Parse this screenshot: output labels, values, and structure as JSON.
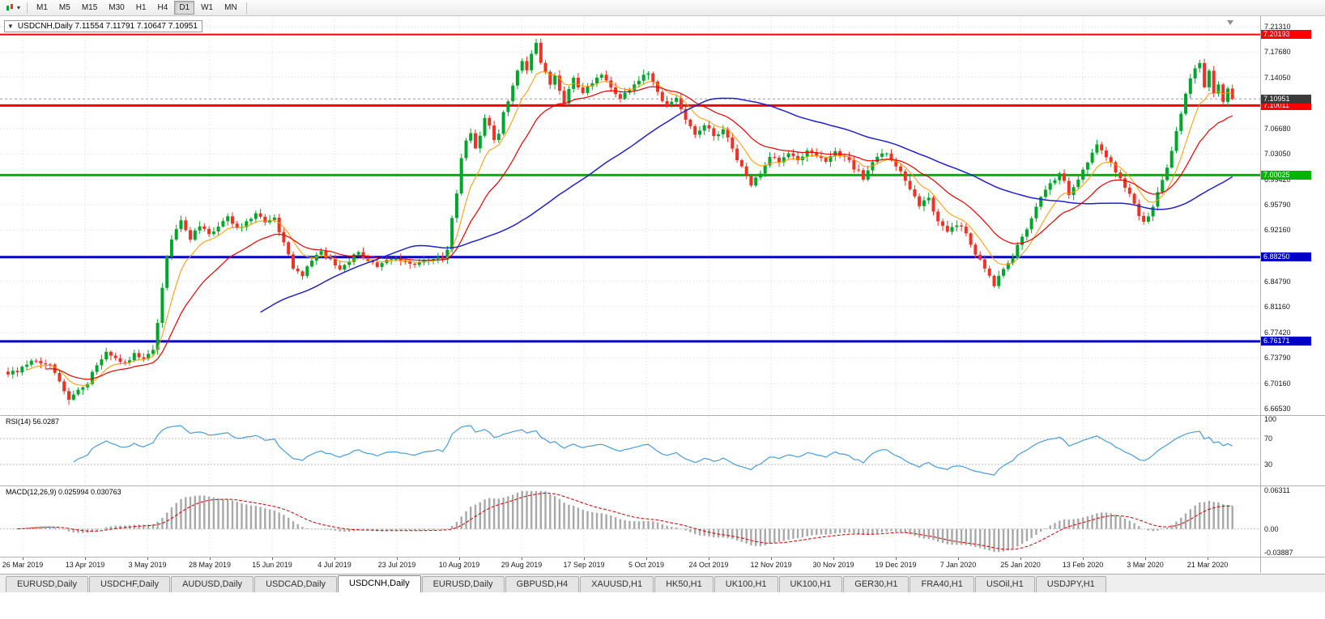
{
  "toolbar": {
    "timeframes": [
      {
        "label": "M1",
        "active": false
      },
      {
        "label": "M5",
        "active": false
      },
      {
        "label": "M15",
        "active": false
      },
      {
        "label": "M30",
        "active": false
      },
      {
        "label": "H1",
        "active": false
      },
      {
        "label": "H4",
        "active": false
      },
      {
        "label": "D1",
        "active": true
      },
      {
        "label": "W1",
        "active": false
      },
      {
        "label": "MN",
        "active": false
      }
    ]
  },
  "chart_header": {
    "collapse_icon": "▼",
    "title": "USDCNH,Daily  7.11554 7.11791 7.10647 7.10951"
  },
  "chart_data": {
    "type": "candlestick",
    "symbol": "USDCNH",
    "timeframe": "Daily",
    "ohlc": {
      "open": 7.11554,
      "high": 7.11791,
      "low": 7.10647,
      "close": 7.10951
    },
    "candles": 263,
    "x_labels": [
      "26 Mar 2019",
      "13 Apr 2019",
      "3 May 2019",
      "28 May 2019",
      "15 Jun 2019",
      "4 Jul 2019",
      "23 Jul 2019",
      "10 Aug 2019",
      "29 Aug 2019",
      "17 Sep 2019",
      "5 Oct 2019",
      "24 Oct 2019",
      "12 Nov 2019",
      "30 Nov 2019",
      "19 Dec 2019",
      "7 Jan 2020",
      "25 Jan 2020",
      "13 Feb 2020",
      "3 Mar 2020",
      "21 Mar 2020"
    ],
    "y_ticks": [
      "7.21310",
      "7.17680",
      "7.14050",
      "7.06680",
      "7.03050",
      "6.99420",
      "6.95790",
      "6.92160",
      "6.84790",
      "6.81160",
      "6.77420",
      "6.73790",
      "6.70160",
      "6.66530"
    ],
    "levels": [
      {
        "price": 7.20193,
        "label": "7.20193",
        "color": "#FF0000",
        "width": 2
      },
      {
        "price": 7.10011,
        "label": "7.10011",
        "color": "#FF0000",
        "width": 3
      },
      {
        "price": 7.00025,
        "label": "7.00025",
        "color": "#00B400",
        "width": 3
      },
      {
        "price": 6.8825,
        "label": "6.88250",
        "color": "#0000C8",
        "width": 3
      },
      {
        "price": 6.76171,
        "label": "6.76171",
        "color": "#0000C8",
        "width": 3
      }
    ],
    "current_price": 7.10951,
    "current_price_label": "7.10951",
    "price_path": [
      [
        0,
        6.716
      ],
      [
        3,
        6.722
      ],
      [
        6,
        6.736
      ],
      [
        9,
        6.727
      ],
      [
        11,
        6.701
      ],
      [
        13,
        6.676
      ],
      [
        15,
        6.692
      ],
      [
        17,
        6.704
      ],
      [
        19,
        6.727
      ],
      [
        21,
        6.746
      ],
      [
        23,
        6.736
      ],
      [
        25,
        6.729
      ],
      [
        27,
        6.742
      ],
      [
        29,
        6.737
      ],
      [
        31,
        6.753
      ],
      [
        32,
        6.79
      ],
      [
        33,
        6.836
      ],
      [
        34,
        6.882
      ],
      [
        35,
        6.908
      ],
      [
        37,
        6.934
      ],
      [
        39,
        6.91
      ],
      [
        41,
        6.929
      ],
      [
        43,
        6.913
      ],
      [
        45,
        6.928
      ],
      [
        47,
        6.938
      ],
      [
        49,
        6.921
      ],
      [
        51,
        6.934
      ],
      [
        53,
        6.947
      ],
      [
        55,
        6.929
      ],
      [
        57,
        6.939
      ],
      [
        59,
        6.904
      ],
      [
        61,
        6.869
      ],
      [
        63,
        6.858
      ],
      [
        65,
        6.877
      ],
      [
        67,
        6.889
      ],
      [
        69,
        6.877
      ],
      [
        71,
        6.867
      ],
      [
        73,
        6.879
      ],
      [
        75,
        6.887
      ],
      [
        77,
        6.877
      ],
      [
        79,
        6.869
      ],
      [
        81,
        6.877
      ],
      [
        83,
        6.881
      ],
      [
        85,
        6.874
      ],
      [
        87,
        6.869
      ],
      [
        89,
        6.877
      ],
      [
        91,
        6.883
      ],
      [
        93,
        6.877
      ],
      [
        94,
        6.89
      ],
      [
        95,
        6.938
      ],
      [
        96,
        6.976
      ],
      [
        97,
        7.022
      ],
      [
        98,
        7.049
      ],
      [
        99,
        7.061
      ],
      [
        100,
        7.041
      ],
      [
        101,
        7.057
      ],
      [
        102,
        7.084
      ],
      [
        103,
        7.069
      ],
      [
        104,
        7.051
      ],
      [
        105,
        7.061
      ],
      [
        106,
        7.089
      ],
      [
        107,
        7.107
      ],
      [
        108,
        7.129
      ],
      [
        109,
        7.153
      ],
      [
        110,
        7.167
      ],
      [
        111,
        7.151
      ],
      [
        112,
        7.177
      ],
      [
        113,
        7.187
      ],
      [
        114,
        7.164
      ],
      [
        115,
        7.146
      ],
      [
        116,
        7.129
      ],
      [
        117,
        7.141
      ],
      [
        118,
        7.121
      ],
      [
        119,
        7.106
      ],
      [
        120,
        7.121
      ],
      [
        121,
        7.137
      ],
      [
        123,
        7.117
      ],
      [
        125,
        7.134
      ],
      [
        127,
        7.147
      ],
      [
        129,
        7.124
      ],
      [
        131,
        7.107
      ],
      [
        133,
        7.124
      ],
      [
        135,
        7.139
      ],
      [
        137,
        7.147
      ],
      [
        139,
        7.119
      ],
      [
        141,
        7.097
      ],
      [
        143,
        7.114
      ],
      [
        145,
        7.081
      ],
      [
        147,
        7.061
      ],
      [
        149,
        7.071
      ],
      [
        151,
        7.057
      ],
      [
        153,
        7.067
      ],
      [
        155,
        7.039
      ],
      [
        157,
        7.011
      ],
      [
        159,
        6.986
      ],
      [
        161,
        7.004
      ],
      [
        163,
        7.027
      ],
      [
        165,
        7.017
      ],
      [
        167,
        7.031
      ],
      [
        169,
        7.021
      ],
      [
        171,
        7.037
      ],
      [
        173,
        7.029
      ],
      [
        175,
        7.017
      ],
      [
        177,
        7.034
      ],
      [
        179,
        7.027
      ],
      [
        181,
        7.011
      ],
      [
        183,
        6.997
      ],
      [
        185,
        7.017
      ],
      [
        187,
        7.034
      ],
      [
        189,
        7.024
      ],
      [
        191,
        7.004
      ],
      [
        193,
        6.977
      ],
      [
        195,
        6.957
      ],
      [
        197,
        6.967
      ],
      [
        199,
        6.934
      ],
      [
        201,
        6.921
      ],
      [
        203,
        6.931
      ],
      [
        205,
        6.917
      ],
      [
        207,
        6.884
      ],
      [
        209,
        6.869
      ],
      [
        211,
        6.844
      ],
      [
        213,
        6.864
      ],
      [
        215,
        6.884
      ],
      [
        217,
        6.911
      ],
      [
        219,
        6.937
      ],
      [
        221,
        6.967
      ],
      [
        223,
        6.987
      ],
      [
        225,
        7.004
      ],
      [
        227,
        6.974
      ],
      [
        229,
        6.991
      ],
      [
        231,
        7.019
      ],
      [
        233,
        7.041
      ],
      [
        235,
        7.027
      ],
      [
        237,
        7.004
      ],
      [
        239,
        6.984
      ],
      [
        241,
        6.957
      ],
      [
        243,
        6.931
      ],
      [
        245,
        6.954
      ],
      [
        247,
        6.991
      ],
      [
        249,
        7.034
      ],
      [
        251,
        7.089
      ],
      [
        253,
        7.141
      ],
      [
        255,
        7.164
      ],
      [
        256,
        7.129
      ],
      [
        257,
        7.147
      ],
      [
        258,
        7.117
      ],
      [
        259,
        7.131
      ],
      [
        260,
        7.107
      ],
      [
        261,
        7.121
      ],
      [
        262,
        7.1095
      ]
    ],
    "indicators": {
      "rsi": {
        "label": "RSI(14) 56.0287",
        "period": 14,
        "value": 56.0287,
        "levels": [
          70,
          30
        ],
        "scale": [
          {
            "label": "100",
            "value": 100
          },
          {
            "label": "70",
            "value": 70
          },
          {
            "label": "30",
            "value": 30
          }
        ]
      },
      "macd": {
        "label": "MACD(12,26,9) 0.025994 0.030763",
        "params": [
          12,
          26,
          9
        ],
        "values": [
          0.025994,
          0.030763
        ],
        "scale_max": 0.06311,
        "scale_min": -0.03887,
        "scale": [
          {
            "label": "0.06311",
            "value": 0.06311
          },
          {
            "label": "0.00",
            "value": 0
          },
          {
            "label": "-0.03887",
            "value": -0.03887
          }
        ]
      }
    },
    "colors": {
      "up": "#00A62C",
      "down": "#EE3224",
      "ma_fast": "#FF9900",
      "ma_mid": "#E80000",
      "ma_slow": "#2121C8",
      "rsi_line": "#4A9CD6",
      "macd_hist": "#A8A8A8",
      "macd_signal": "#D00000",
      "grid": "#D6D6D6",
      "badge_current": "#3A3A3A",
      "current_line": "#9A9A9A"
    }
  },
  "bottom_tabs": [
    {
      "label": "EURUSD,Daily",
      "active": false
    },
    {
      "label": "USDCHF,Daily",
      "active": false
    },
    {
      "label": "AUDUSD,Daily",
      "active": false
    },
    {
      "label": "USDCAD,Daily",
      "active": false
    },
    {
      "label": "USDCNH,Daily",
      "active": true
    },
    {
      "label": "EURUSD,Daily",
      "active": false
    },
    {
      "label": "GBPUSD,H4",
      "active": false
    },
    {
      "label": "XAUUSD,H1",
      "active": false
    },
    {
      "label": "HK50,H1",
      "active": false
    },
    {
      "label": "UK100,H1",
      "active": false
    },
    {
      "label": "UK100,H1",
      "active": false
    },
    {
      "label": "GER30,H1",
      "active": false
    },
    {
      "label": "FRA40,H1",
      "active": false
    },
    {
      "label": "USOil,H1",
      "active": false
    },
    {
      "label": "USDJPY,H1",
      "active": false
    }
  ]
}
